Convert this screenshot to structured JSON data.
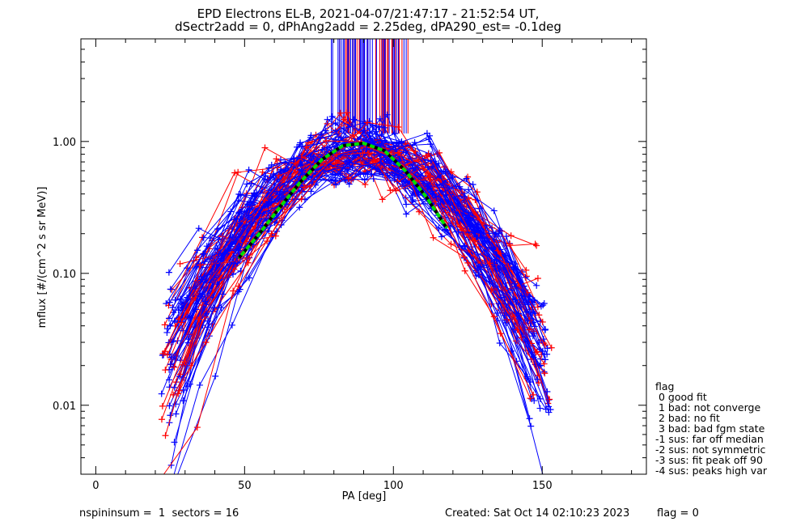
{
  "title_line1": "EPD Electrons EL-B, 2021-04-07/21:47:17 - 21:52:54 UT,",
  "title_line2": "dSectr2add = 0, dPhAng2add = 2.25deg, dPA290_est=  -0.1deg",
  "legend": {
    "title": "flag",
    "items": [
      " 0 good fit",
      " 1 bad: not converge",
      " 2 bad: no fit",
      " 3 bad: bad fgm state",
      "-1 sus: far off median",
      "-2 sus: not symmetric",
      "-3 sus: fit peak off 90",
      "-4 sus: peaks high var"
    ]
  },
  "footer": {
    "left": "nspininsum =  1  sectors = 16",
    "created": "Created: Sat Oct 14 02:10:23 2023",
    "flag": "flag = 0"
  },
  "colors": {
    "series_a": "#ff0000",
    "series_b": "#0000ff",
    "fit": "#00dd00",
    "median": "#000000"
  },
  "chart_data": {
    "type": "line",
    "xlabel": "PA [deg]",
    "ylabel": "mflux [#/(cm^2 s sr MeV)]",
    "xlim": [
      -5,
      185
    ],
    "ylim": [
      0.003,
      6.0
    ],
    "yscale": "log",
    "xticks": [
      0,
      50,
      100,
      150
    ],
    "yticks": [
      {
        "value": 0.01,
        "label": "0.01"
      },
      {
        "value": 0.1,
        "label": "0.10"
      },
      {
        "value": 1.0,
        "label": "1.00"
      }
    ],
    "series_red_example": {
      "x": [
        26,
        37,
        48,
        59,
        70,
        81,
        92,
        103,
        114,
        125,
        136,
        147
      ],
      "y": [
        0.012,
        0.03,
        0.08,
        0.2,
        0.45,
        0.8,
        0.9,
        0.7,
        0.35,
        0.12,
        0.035,
        0.012
      ]
    },
    "series_blue_example": {
      "x": [
        25,
        36,
        47,
        58,
        69,
        80,
        91,
        102,
        113,
        124,
        135,
        146
      ],
      "y": [
        0.04,
        0.09,
        0.18,
        0.35,
        0.6,
        0.85,
        0.88,
        0.72,
        0.42,
        0.16,
        0.05,
        0.015
      ]
    },
    "fit_curve": {
      "x": [
        48,
        55,
        62,
        69,
        76,
        83,
        90,
        97,
        104,
        111,
        118
      ],
      "y": [
        0.13,
        0.2,
        0.32,
        0.5,
        0.73,
        0.93,
        0.97,
        0.85,
        0.6,
        0.38,
        0.22
      ]
    },
    "vertical_markers": {
      "x_range": [
        79,
        105
      ],
      "count_red": 30,
      "count_blue": 40
    },
    "spread_traces": 95
  }
}
